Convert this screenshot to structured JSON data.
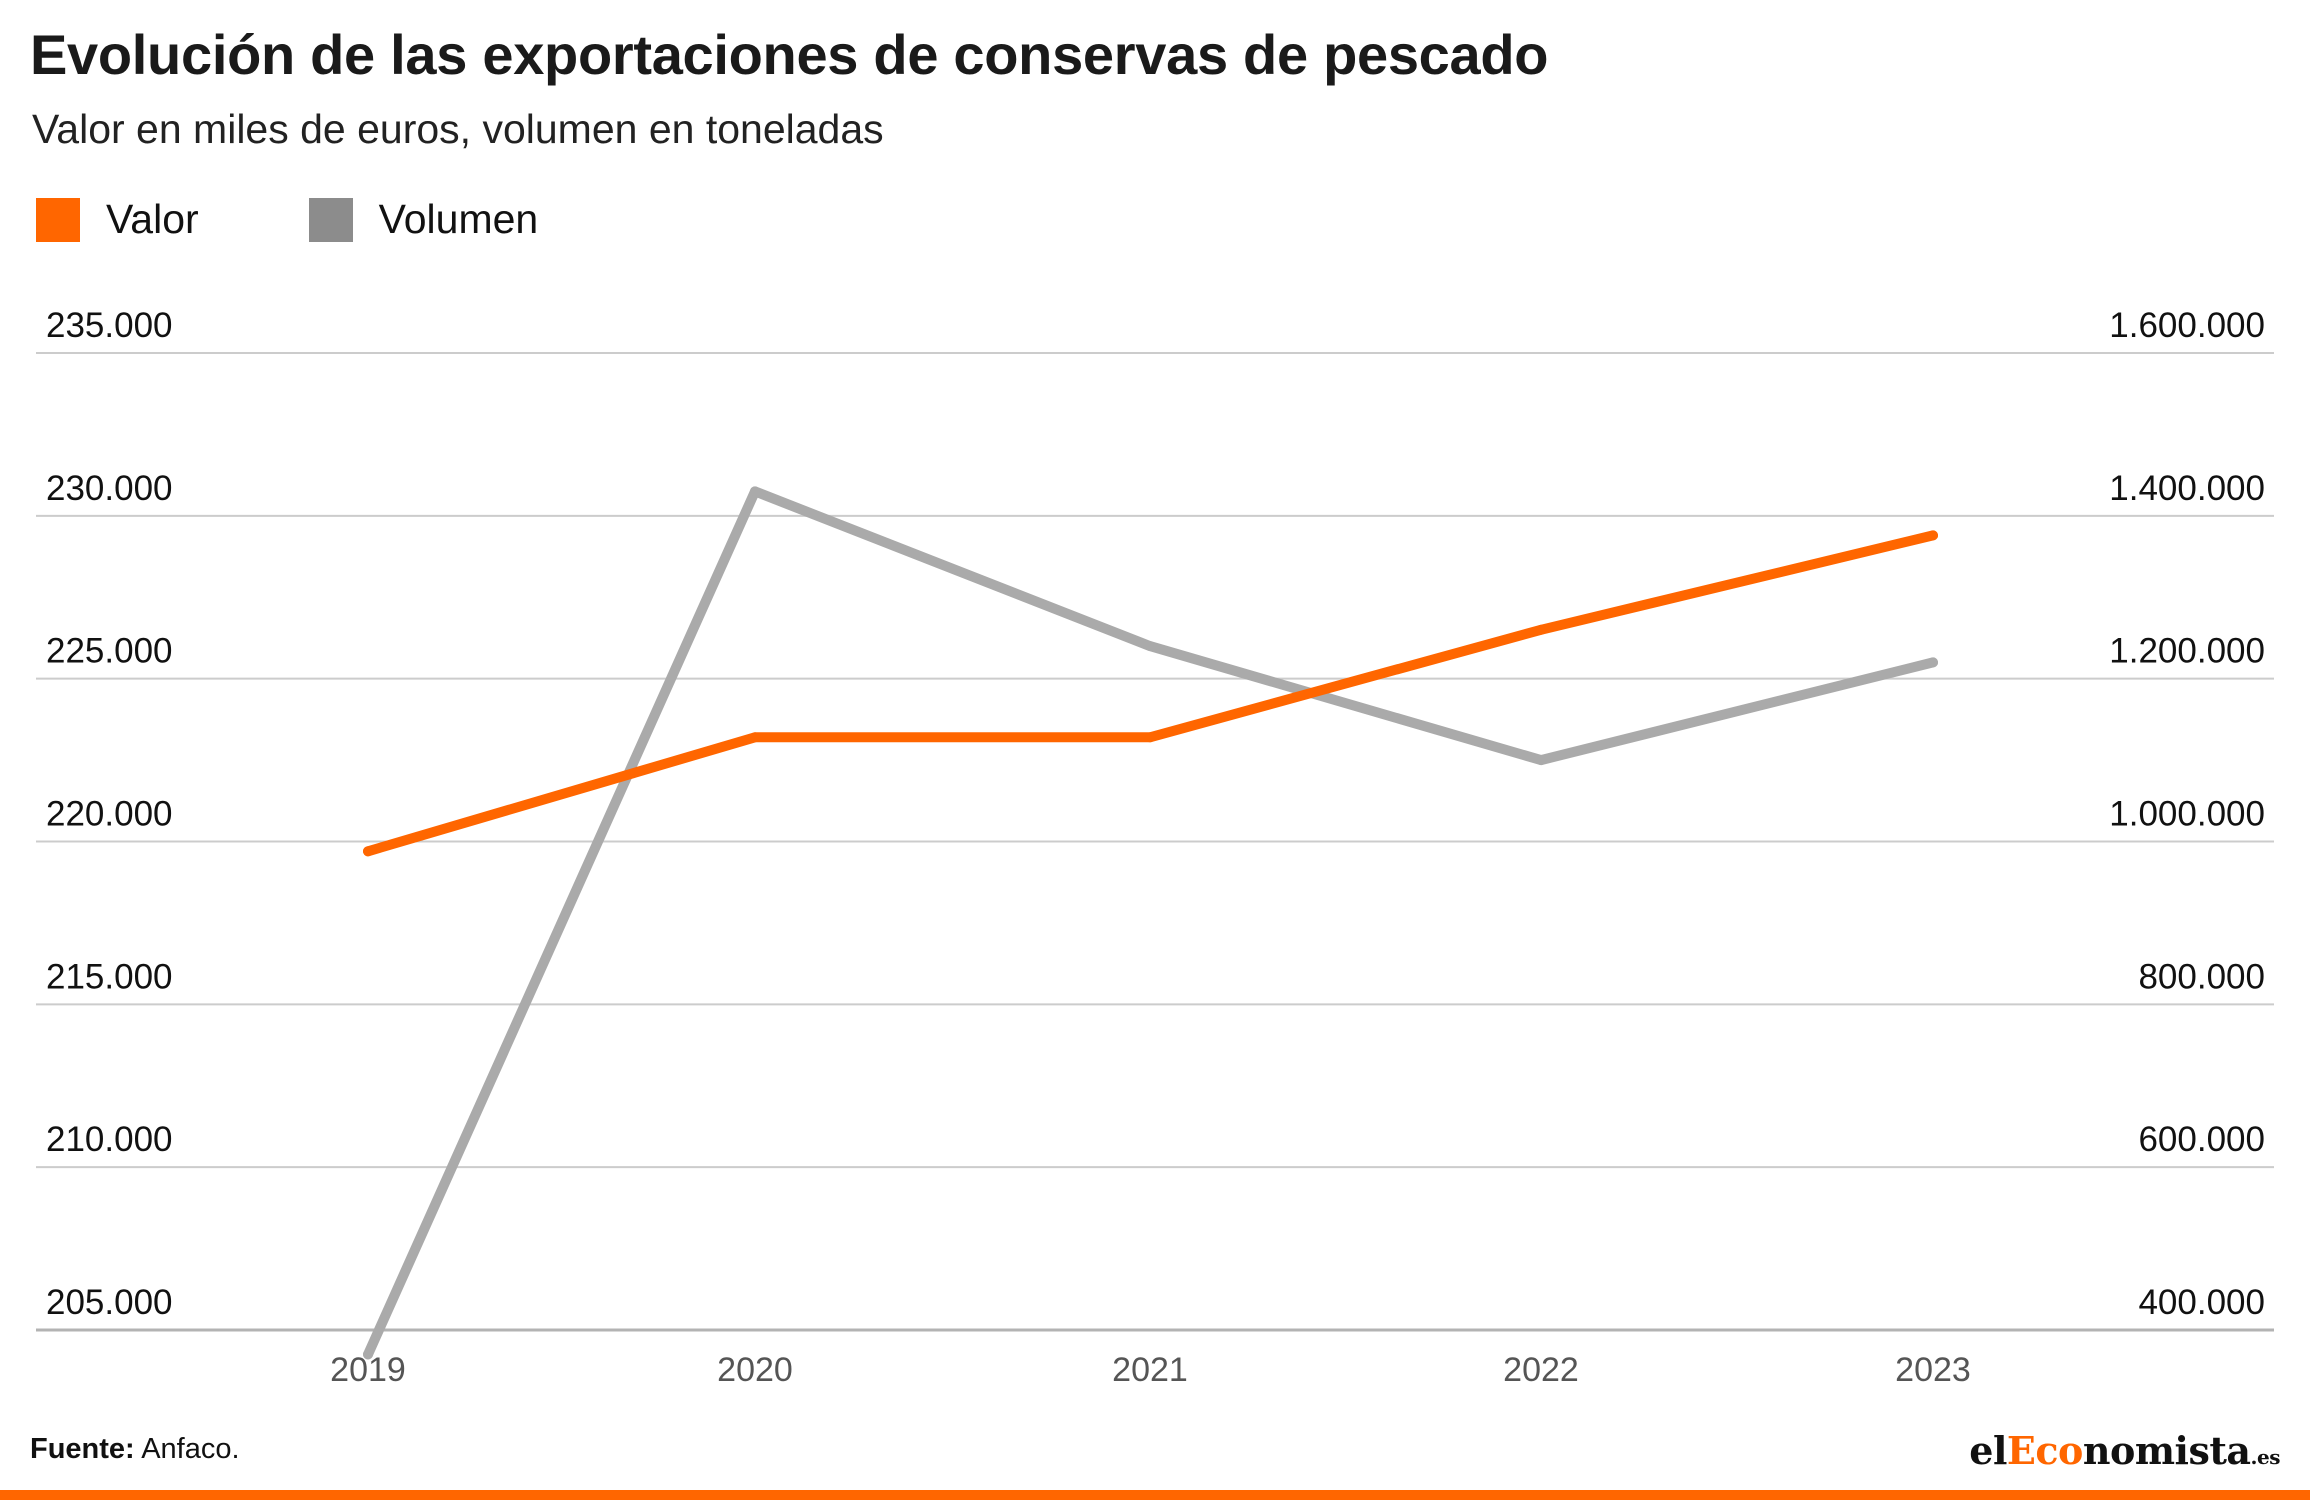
{
  "header": {
    "title": "Evolución de las exportaciones de conservas de pescado",
    "subtitle": "Valor en miles de euros, volumen en toneladas"
  },
  "legend": [
    {
      "label": "Valor",
      "color": "#ff6600"
    },
    {
      "label": "Volumen",
      "color": "#8c8c8c"
    }
  ],
  "chart_data": {
    "type": "line",
    "title": "Evolución de las exportaciones de conservas de pescado",
    "subtitle": "Valor en miles de euros, volumen en toneladas",
    "categories": [
      "2019",
      "2020",
      "2021",
      "2022",
      "2023"
    ],
    "series": [
      {
        "name": "Valor",
        "axis": "left",
        "color": "#ff6600",
        "values": [
          219700,
          223200,
          223200,
          226500,
          229400
        ]
      },
      {
        "name": "Volumen",
        "axis": "right",
        "color": "#aaaaaa",
        "values": [
          370000,
          1430000,
          1240000,
          1100000,
          1220000
        ]
      }
    ],
    "y_left": {
      "min": 205000,
      "max": 235000,
      "ticks": [
        "235.000",
        "230.000",
        "225.000",
        "220.000",
        "215.000",
        "210.000",
        "205.000"
      ]
    },
    "y_right": {
      "min": 400000,
      "max": 1600000,
      "ticks": [
        "1.600.000",
        "1.400.000",
        "1.200.000",
        "1.000.000",
        "800.000",
        "600.000",
        "400.000"
      ]
    },
    "xlabel": "",
    "ylabel": "",
    "grid": true
  },
  "footer": {
    "source_label": "Fuente:",
    "source_value": "Anfaco.",
    "logo": {
      "part1": "el",
      "part2": "Eco",
      "part3": "nomista",
      "suffix": ".es"
    }
  }
}
